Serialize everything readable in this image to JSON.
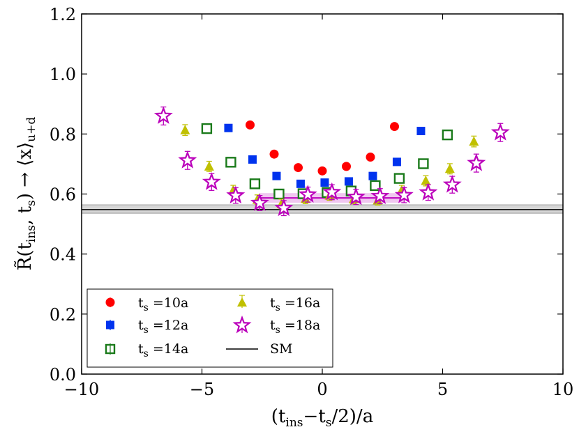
{
  "chart_data": {
    "type": "scatter",
    "ylabel": "R̃(t_ins, t_s) → ⟨x⟩_{u+d}",
    "ylabel_parts": {
      "lead": "R̃(t",
      "sub1": "ins",
      "mid": ", t",
      "sub2": "s",
      "tail": ") → ⟨x⟩",
      "sub3": "u+d"
    },
    "xlabel": "(t_ins−t_s/2)/a",
    "xlabel_parts": {
      "lead": "(t",
      "sub1": "ins",
      "mid": "−t",
      "sub2": "s",
      "tail": "/2)/a"
    },
    "xlim": [
      -10,
      10
    ],
    "ylim": [
      0.0,
      1.2
    ],
    "x_ticks": [
      -10,
      -5,
      0,
      5,
      10
    ],
    "x_tick_labels": [
      "−10",
      "−5",
      "0",
      "5",
      "10"
    ],
    "y_ticks": [
      0.0,
      0.2,
      0.4,
      0.6,
      0.8,
      1.0,
      1.2
    ],
    "y_tick_labels": [
      "0.0",
      "0.2",
      "0.4",
      "0.6",
      "0.8",
      "1.0",
      "1.2"
    ],
    "grid": false,
    "legend_position": "bottom-left",
    "series": [
      {
        "name": "t_s =10a",
        "label_main": "t",
        "label_sub": "s",
        "label_tail": " =10a",
        "marker": "circle",
        "color": "#ff0000",
        "filled": true,
        "x": [
          -3.0,
          -2.0,
          -1.0,
          0.0,
          1.0,
          2.0,
          3.0
        ],
        "y": [
          0.83,
          0.733,
          0.688,
          0.677,
          0.692,
          0.723,
          0.825
        ],
        "err": [
          0.008,
          0.008,
          0.007,
          0.007,
          0.007,
          0.008,
          0.009
        ]
      },
      {
        "name": "t_s =12a",
        "label_main": "t",
        "label_sub": "s",
        "label_tail": " =12a",
        "marker": "square",
        "color": "#0033ee",
        "filled": true,
        "x": [
          -3.9,
          -2.9,
          -1.9,
          -0.9,
          0.1,
          1.1,
          2.1,
          3.1,
          4.1
        ],
        "y": [
          0.82,
          0.715,
          0.66,
          0.634,
          0.638,
          0.642,
          0.66,
          0.707,
          0.81
        ],
        "err": [
          0.009,
          0.009,
          0.008,
          0.008,
          0.008,
          0.008,
          0.008,
          0.009,
          0.01
        ]
      },
      {
        "name": "t_s =14a",
        "label_main": "t",
        "label_sub": "s",
        "label_tail": " =14a",
        "marker": "open-square",
        "color": "#1a7a1a",
        "filled": false,
        "x": [
          -4.8,
          -3.8,
          -2.8,
          -1.8,
          -0.8,
          0.2,
          1.2,
          2.2,
          3.2,
          4.2,
          5.2
        ],
        "y": [
          0.818,
          0.706,
          0.634,
          0.6,
          0.601,
          0.605,
          0.61,
          0.628,
          0.652,
          0.701,
          0.797
        ],
        "err": [
          0.012,
          0.011,
          0.01,
          0.01,
          0.01,
          0.01,
          0.01,
          0.01,
          0.011,
          0.011,
          0.012
        ]
      },
      {
        "name": "t_s =16a",
        "label_main": "t",
        "label_sub": "s",
        "label_tail": " =16a",
        "marker": "triangle",
        "color": "#c0c000",
        "filled": true,
        "x": [
          -5.7,
          -4.7,
          -3.7,
          -2.7,
          -1.7,
          -0.7,
          0.3,
          1.3,
          2.3,
          3.3,
          4.3,
          5.3,
          6.3
        ],
        "y": [
          0.813,
          0.692,
          0.613,
          0.581,
          0.567,
          0.584,
          0.595,
          0.583,
          0.579,
          0.613,
          0.644,
          0.684,
          0.775
        ],
        "err": [
          0.018,
          0.017,
          0.016,
          0.016,
          0.016,
          0.016,
          0.016,
          0.016,
          0.016,
          0.016,
          0.017,
          0.017,
          0.018
        ]
      },
      {
        "name": "t_s =18a",
        "label_main": "t",
        "label_sub": "s",
        "label_tail": " =18a",
        "marker": "open-star",
        "color": "#bb00bb",
        "filled": false,
        "x": [
          -6.6,
          -5.6,
          -4.6,
          -3.6,
          -2.6,
          -1.6,
          -0.6,
          0.4,
          1.4,
          2.4,
          3.4,
          4.4,
          5.4,
          6.4,
          7.4
        ],
        "y": [
          0.86,
          0.712,
          0.64,
          0.595,
          0.57,
          0.553,
          0.598,
          0.606,
          0.59,
          0.593,
          0.596,
          0.605,
          0.631,
          0.703,
          0.805
        ],
        "err": [
          0.03,
          0.03,
          0.028,
          0.026,
          0.025,
          0.025,
          0.025,
          0.025,
          0.025,
          0.025,
          0.025,
          0.026,
          0.028,
          0.03,
          0.03
        ]
      }
    ],
    "fit": {
      "color": "#bb00bb",
      "x_range": [
        -2.6,
        3.4
      ],
      "y": 0.587,
      "band": [
        0.571,
        0.603
      ]
    },
    "sm": {
      "name": "SM",
      "value": 0.548,
      "band": [
        0.536,
        0.564
      ],
      "color": "#000000",
      "band_color": "#c8c8c8"
    }
  }
}
